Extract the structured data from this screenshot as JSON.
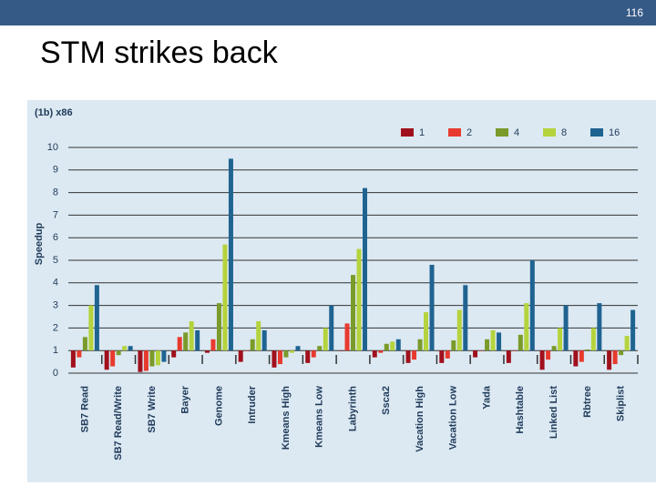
{
  "page_number": "116",
  "slide_title": "STM strikes back",
  "chart_data": {
    "type": "bar",
    "title": "(1b) x86",
    "y_label": "Speedup",
    "categories": [
      "SB7 Read",
      "SB7 Read/Write",
      "SB7 Write",
      "Bayer",
      "Genome",
      "Intruder",
      "Kmeans High",
      "Kmeans Low",
      "Labyrinth",
      "Ssca2",
      "Vacation High",
      "Vacation Low",
      "Yada",
      "Hashtable",
      "Linked List",
      "Rbtree",
      "Skiplist"
    ],
    "series": [
      {
        "name": "1",
        "color": "#a0101c",
        "values": [
          0.25,
          0.15,
          0.05,
          0.7,
          0.9,
          0.5,
          0.25,
          0.45,
          1.0,
          0.7,
          0.45,
          0.45,
          0.7,
          0.45,
          0.15,
          0.3,
          0.15
        ]
      },
      {
        "name": "2",
        "color": "#e83a2e",
        "values": [
          0.7,
          0.3,
          0.1,
          1.6,
          1.5,
          1.0,
          0.4,
          0.7,
          2.2,
          0.9,
          0.6,
          0.65,
          1.0,
          1.0,
          0.6,
          0.5,
          0.4
        ]
      },
      {
        "name": "4",
        "color": "#7a9a2a",
        "values": [
          1.6,
          0.8,
          0.3,
          1.8,
          3.1,
          1.5,
          0.7,
          1.2,
          4.35,
          1.3,
          1.5,
          1.45,
          1.5,
          1.7,
          1.2,
          1.05,
          0.8
        ]
      },
      {
        "name": "8",
        "color": "#b5d33d",
        "values": [
          3.0,
          1.2,
          0.35,
          2.3,
          5.7,
          2.3,
          0.9,
          2.0,
          5.5,
          1.4,
          2.7,
          2.8,
          1.9,
          3.1,
          2.0,
          2.0,
          1.65
        ]
      },
      {
        "name": "16",
        "color": "#1f6391",
        "values": [
          3.9,
          1.2,
          0.5,
          1.9,
          9.5,
          1.9,
          1.2,
          3.0,
          8.2,
          1.5,
          4.8,
          3.9,
          1.8,
          5.0,
          3.0,
          3.1,
          2.8
        ]
      }
    ],
    "baseline": 1,
    "ylim": [
      0,
      10
    ],
    "yticks": [
      0,
      1,
      2,
      3,
      4,
      5,
      6,
      7,
      8,
      9,
      10
    ],
    "grid": true,
    "legend": "top-right"
  }
}
